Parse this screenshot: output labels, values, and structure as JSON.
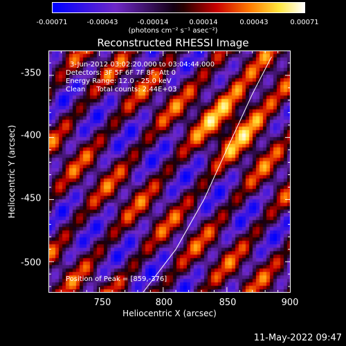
{
  "chart_data": {
    "type": "heatmap",
    "title": "Reconstructed RHESSI Image",
    "xlabel": "Heliocentric X (arcsec)",
    "ylabel": "Heliocentric Y (arcsec)",
    "xlim": [
      710,
      900
    ],
    "ylim": [
      -525,
      -330
    ],
    "x_ticks": [
      750,
      800,
      850,
      900
    ],
    "y_ticks": [
      -350,
      -400,
      -450,
      -500
    ],
    "colorbar": {
      "label": "(photons cm⁻² s⁻¹ asec⁻²)",
      "range": [
        -0.00071,
        0.00071
      ],
      "tick_labels": [
        "-0.00071",
        "-0.00043",
        "-0.00014",
        "0.00014",
        "0.00043",
        "0.00071"
      ],
      "tick_values": [
        -0.00071,
        -0.00043,
        -0.00014,
        0.00014,
        0.00043,
        0.00071
      ]
    },
    "annotations": [
      "3-Jun-2012 03:02:20.000 to 03:04:44.000",
      "Detectors: 3F 5F 6F 7F 8F, Att 0",
      "Energy Range: 12.0 - 25.0 keV",
      "Clean     Total counts: 2.44E+03"
    ],
    "peak_label": "Position of Peak = [859,-376]",
    "peak": [
      859,
      -376
    ],
    "limb": [
      [
        784,
        -525
      ],
      [
        810,
        -490
      ],
      [
        832,
        -450
      ],
      [
        852,
        -405
      ],
      [
        870,
        -365
      ],
      [
        885,
        -335
      ]
    ]
  },
  "footer": {
    "date": "11-May-2022 09:47"
  }
}
